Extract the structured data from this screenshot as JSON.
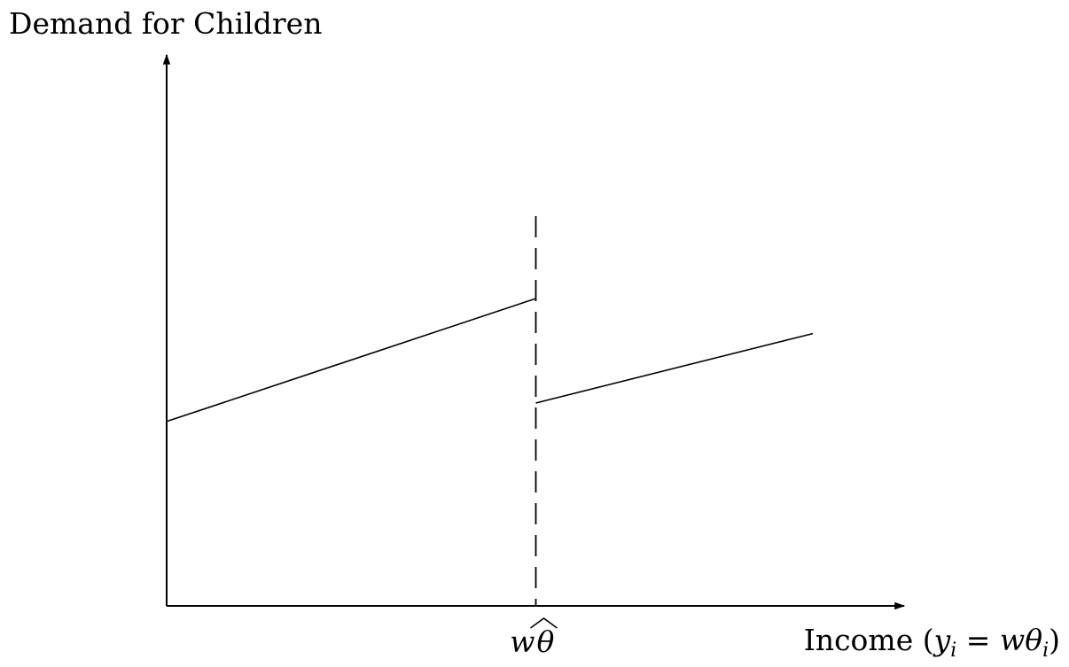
{
  "chart_data": {
    "type": "line",
    "ylabel": "Demand for Children",
    "xlabel": {
      "prefix": "Income (",
      "y_var": "y",
      "y_sub": "i",
      "equals": " = ",
      "w_var": "w",
      "theta_var": "θ",
      "theta_sub": "i",
      "suffix": ")"
    },
    "threshold_label": {
      "w_var": "w",
      "theta_var": "θ",
      "hat": "^"
    },
    "xlim": [
      0,
      1
    ],
    "ylim": [
      0,
      1
    ],
    "threshold_x": 0.5,
    "grid": false,
    "series": [
      {
        "x": [
          0.0,
          0.5
        ],
        "y": [
          0.6,
          1.0
        ]
      },
      {
        "x": [
          0.5,
          0.875
        ],
        "y": [
          0.66,
          0.886
        ]
      }
    ]
  }
}
